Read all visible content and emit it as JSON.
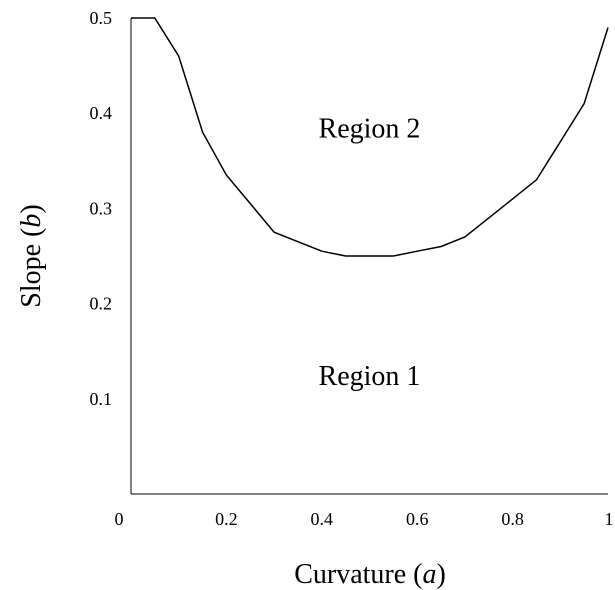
{
  "chart_data": {
    "type": "line",
    "title": "",
    "xlabel_prefix": "Curvature (",
    "xlabel_var": "a",
    "xlabel_suffix": ")",
    "ylabel_prefix": "Slope (",
    "ylabel_var": "b",
    "ylabel_suffix": ")",
    "xlim": [
      0,
      1
    ],
    "ylim": [
      0,
      0.5
    ],
    "x_ticks": [
      0,
      0.2,
      0.4,
      0.6,
      0.8,
      1
    ],
    "x_tick_labels": [
      "0",
      "0.2",
      "0.4",
      "0.6",
      "0.8",
      "1"
    ],
    "y_ticks": [
      0.1,
      0.2,
      0.3,
      0.4,
      0.5
    ],
    "y_tick_labels": [
      "0.1",
      "0.2",
      "0.3",
      "0.4",
      "0.5"
    ],
    "grid": false,
    "series": [
      {
        "x": [
          0,
          0.05,
          0.1,
          0.15,
          0.2,
          0.25,
          0.3,
          0.35,
          0.4,
          0.45,
          0.5,
          0.55,
          0.6,
          0.65,
          0.7,
          0.75,
          0.8,
          0.85,
          0.9,
          0.95,
          1.0
        ],
        "y": [
          0.5,
          0.5,
          0.46,
          0.38,
          0.335,
          0.305,
          0.275,
          0.265,
          0.255,
          0.25,
          0.25,
          0.25,
          0.255,
          0.26,
          0.27,
          0.29,
          0.31,
          0.33,
          0.37,
          0.41,
          0.49
        ]
      }
    ],
    "annotations": [
      {
        "text": "Region 2",
        "x": 0.5,
        "y": 0.385
      },
      {
        "text": "Region 1",
        "x": 0.5,
        "y": 0.125
      }
    ]
  }
}
